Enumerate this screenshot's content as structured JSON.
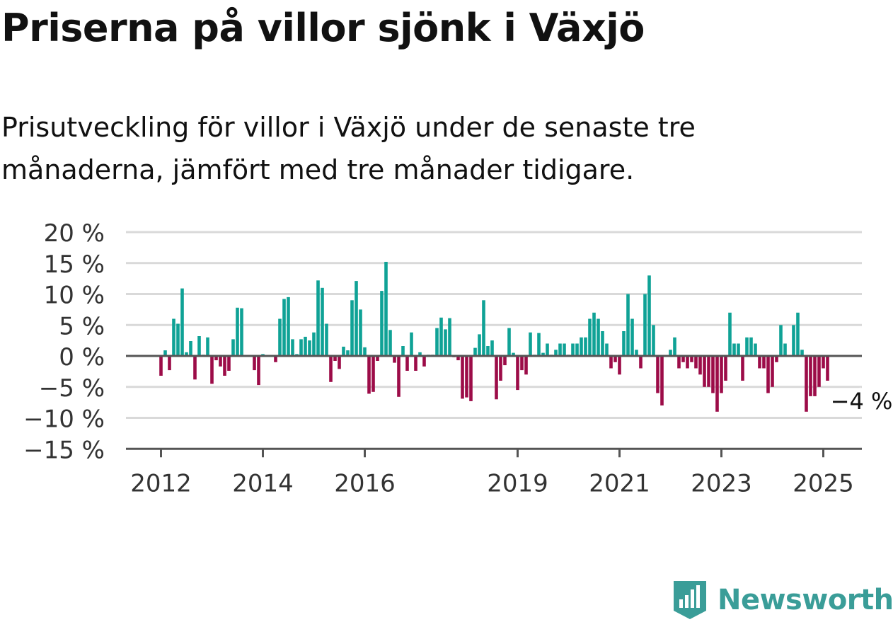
{
  "title": "Priserna på villor sjönk i Växjö",
  "subtitle": "Prisutveckling för villor i Växjö under de senaste tre månaderna, jämfört med tre månader tidigare.",
  "brand": {
    "name": "Newsworthy"
  },
  "colors": {
    "positive": "#0fa296",
    "negative": "#9c0c48",
    "grid": "#d9d9d9",
    "axis": "#555555"
  },
  "chart_data": {
    "type": "bar",
    "xlabel": "",
    "ylabel": "",
    "ylim": [
      -15,
      20
    ],
    "yticks": [
      20,
      15,
      10,
      5,
      0,
      -5,
      -10,
      -15
    ],
    "ytick_labels": [
      "20 %",
      "15 %",
      "10 %",
      "5 %",
      "0 %",
      "−5 %",
      "−10 %",
      "−15 %"
    ],
    "xtick_labels": [
      "2012",
      "2014",
      "2016",
      "2019",
      "2021",
      "2023",
      "2025"
    ],
    "grid": true,
    "start": "2012-01",
    "annotation": {
      "text": "−4 %"
    },
    "values": [
      -3.2,
      0.9,
      -2.3,
      6.0,
      5.2,
      10.9,
      0.6,
      2.4,
      -3.8,
      3.2,
      0.2,
      3.0,
      -4.5,
      -0.7,
      -1.7,
      -3.2,
      -2.4,
      2.7,
      7.8,
      7.7,
      0.0,
      0.0,
      -2.3,
      -4.7,
      0.3,
      0.0,
      0.0,
      -1.0,
      6.0,
      9.2,
      9.5,
      2.7,
      0.3,
      2.7,
      3.1,
      2.5,
      3.8,
      12.2,
      11.0,
      5.2,
      -4.2,
      -0.8,
      -2.1,
      1.5,
      0.9,
      9.0,
      12.1,
      7.5,
      1.4,
      -6.1,
      -5.8,
      -0.8,
      10.5,
      15.2,
      4.2,
      -1.1,
      -6.6,
      1.6,
      -2.4,
      3.8,
      -2.4,
      0.6,
      -1.7,
      0.2,
      0.2,
      4.5,
      6.2,
      4.3,
      6.1,
      -0.2,
      -0.7,
      -6.9,
      -6.7,
      -7.3,
      1.3,
      3.5,
      9.0,
      1.6,
      2.5,
      -7.0,
      -4.0,
      -1.5,
      4.5,
      0.5,
      -5.5,
      -2.3,
      -3.0,
      3.8,
      0.2,
      3.7,
      0.5,
      2.0,
      0.2,
      1.0,
      2.0,
      2.0,
      0.2,
      2.0,
      2.0,
      3.0,
      3.0,
      6.0,
      7.0,
      6.0,
      4.0,
      2.0,
      -2.0,
      -1.0,
      -3.0,
      4.0,
      10.0,
      6.0,
      1.0,
      -2.0,
      10.0,
      13.0,
      5.0,
      -6.0,
      -8.0,
      0.0,
      1.0,
      3.0,
      -2.0,
      -1.0,
      -2.0,
      -1.0,
      -2.0,
      -3.0,
      -5.0,
      -5.0,
      -6.0,
      -9.0,
      -6.0,
      -4.0,
      7.0,
      2.0,
      2.0,
      -4.0,
      3.0,
      3.0,
      2.0,
      -2.0,
      -2.0,
      -6.0,
      -5.0,
      -1.0,
      5.0,
      2.0,
      0.0,
      5.0,
      7.0,
      1.0,
      -9.0,
      -6.5,
      -6.5,
      -5.0,
      -2.0,
      -4.0
    ]
  }
}
